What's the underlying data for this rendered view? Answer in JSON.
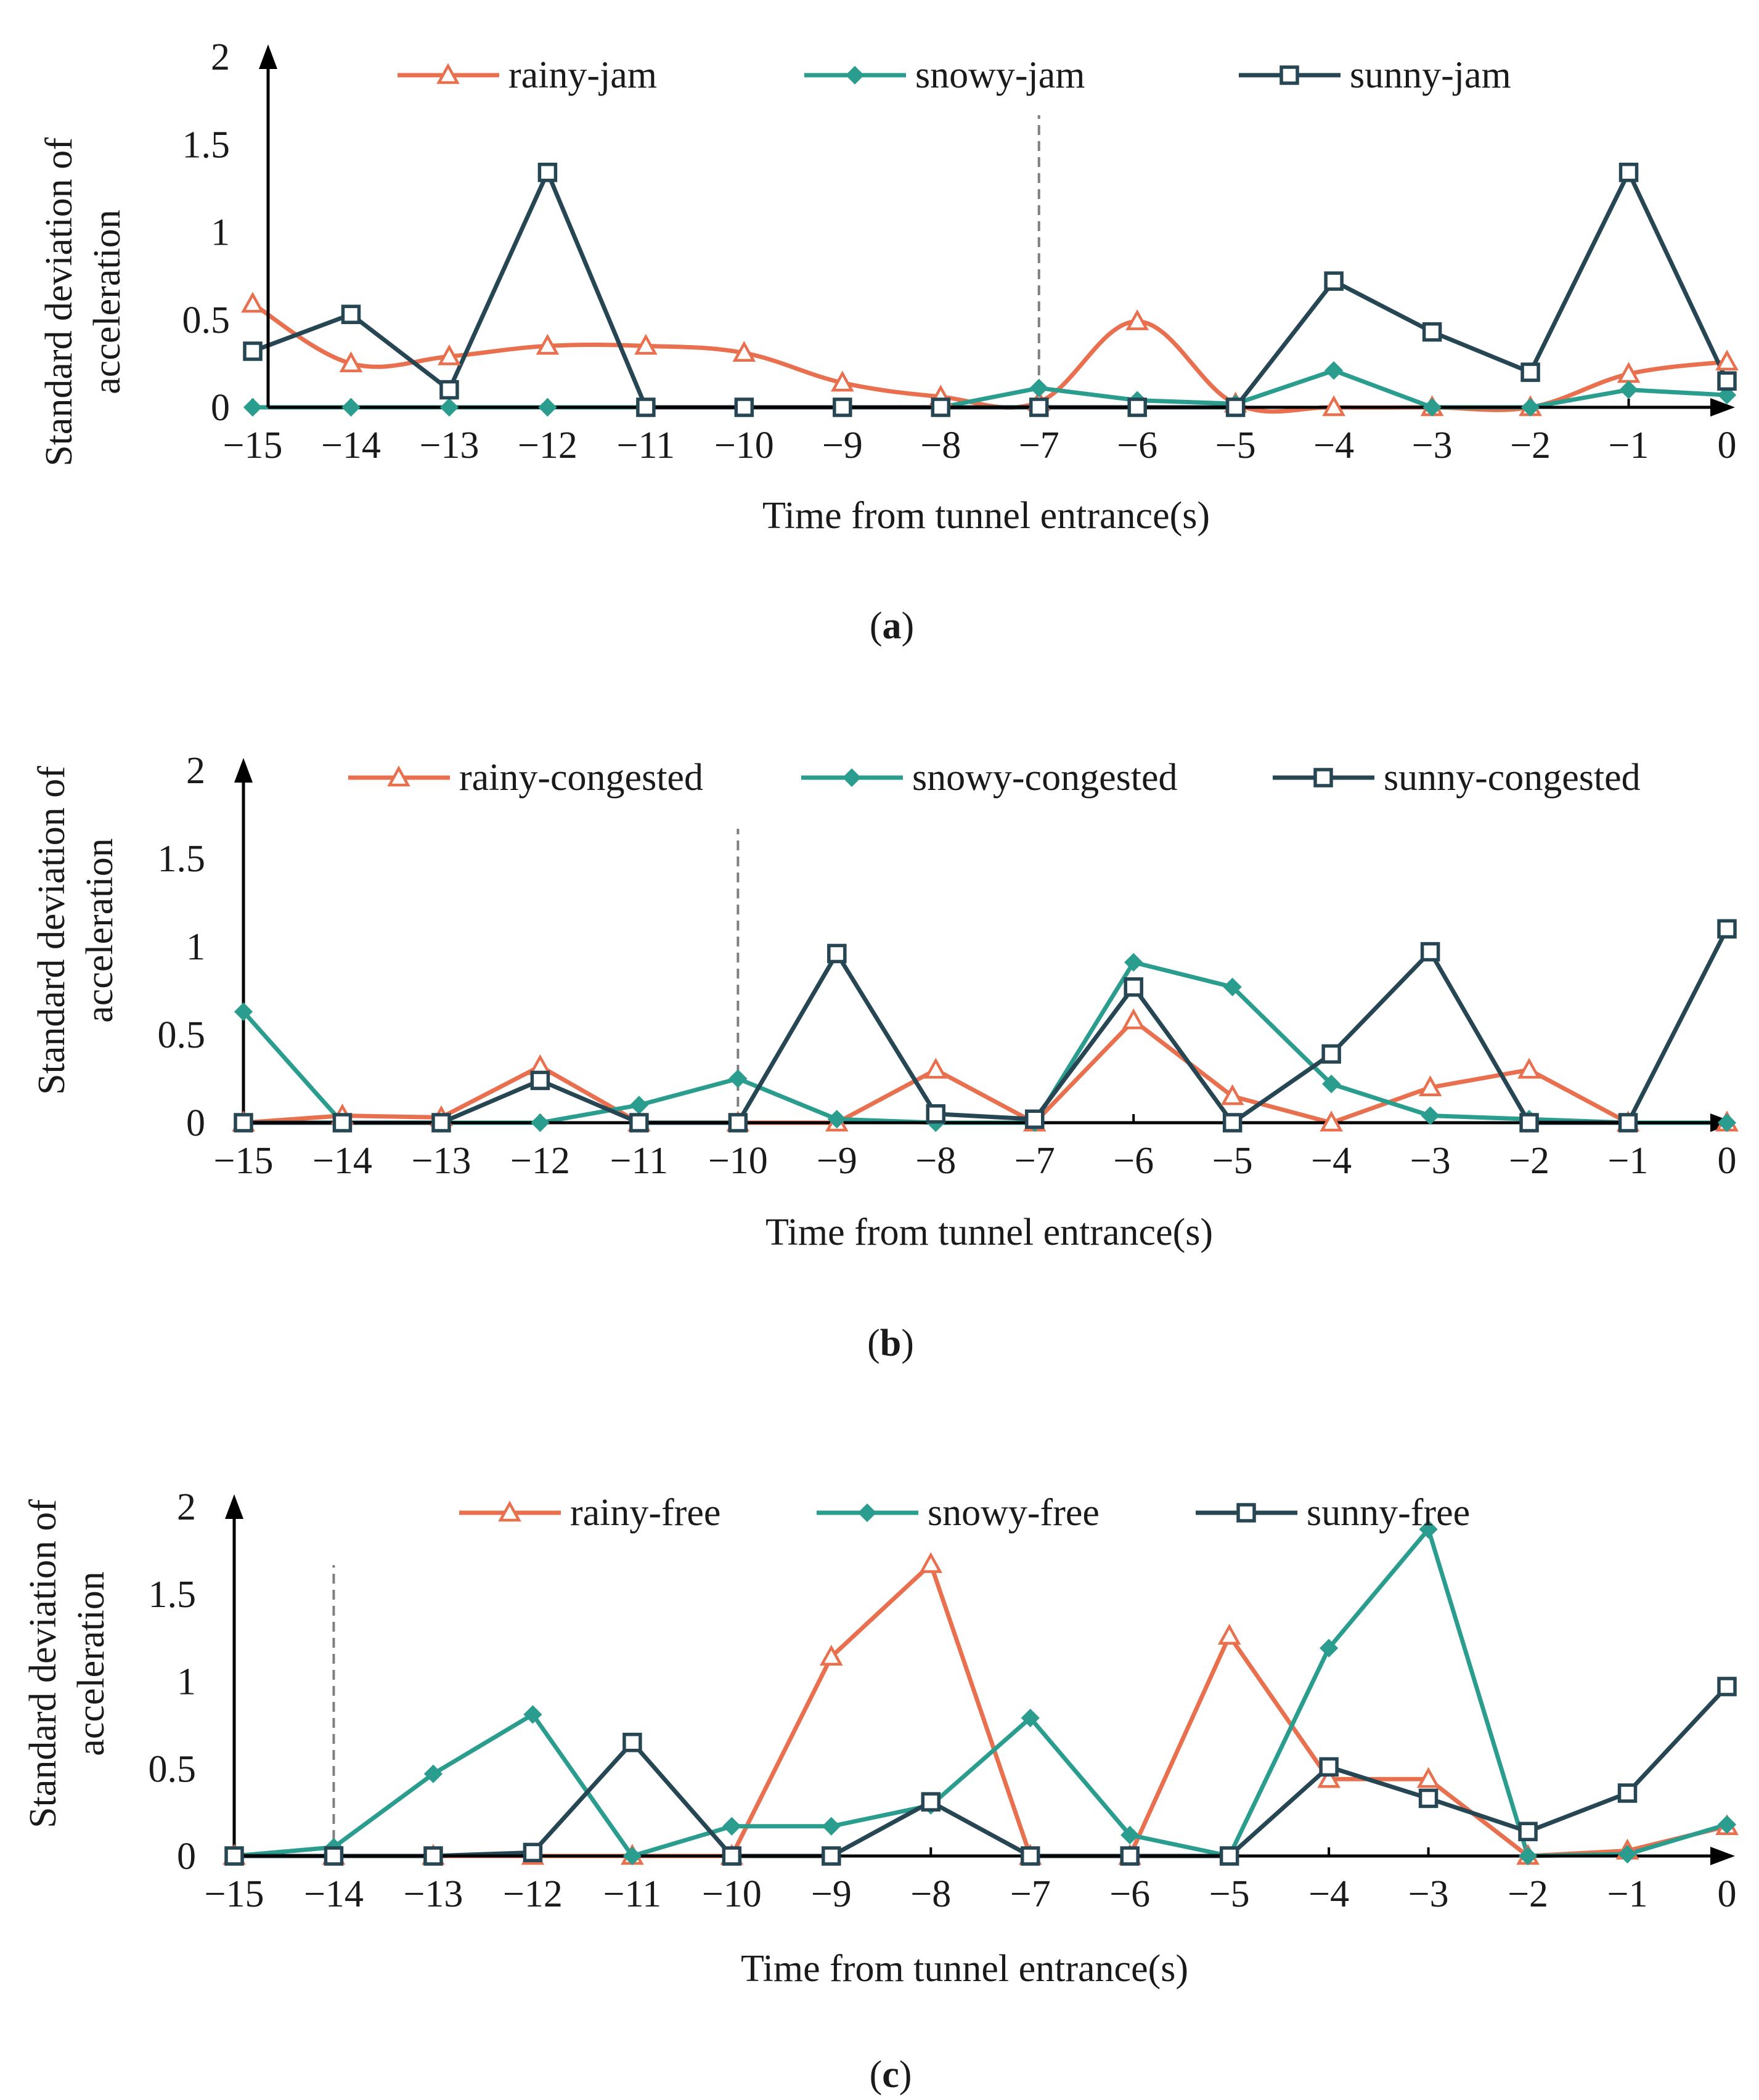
{
  "chart_data": [
    {
      "type": "line",
      "panel_label": "a",
      "xlabel": "Time from tunnel entrance(s)",
      "ylabel_lines": [
        "Standard deviation of",
        "acceleration"
      ],
      "x": [
        -15,
        -14,
        -13,
        -12,
        -11,
        -10,
        -9,
        -8,
        -7,
        -6,
        -5,
        -4,
        -3,
        -2,
        -1,
        0
      ],
      "x_tick_labels": [
        "−15",
        "−14",
        "−13",
        "−12",
        "−11",
        "−10",
        "−9",
        "−8",
        "−7",
        "−6",
        "−5",
        "−4",
        "−3",
        "−2",
        "−1",
        "0"
      ],
      "y_ticks": [
        0,
        0.5,
        1,
        1.5,
        2
      ],
      "y_tick_labels": [
        "0",
        "0.5",
        "1",
        "1.5",
        "2"
      ],
      "ylim": [
        0,
        2
      ],
      "xlim": [
        -15,
        0
      ],
      "dashed_vline_x": -7,
      "series": [
        {
          "name": "rainy-jam",
          "color": "#e8704f",
          "marker": "triangle",
          "smooth": true,
          "values": [
            0.59,
            0.25,
            0.29,
            0.35,
            0.35,
            0.31,
            0.14,
            0.06,
            0.03,
            0.49,
            0.02,
            0.0,
            0.0,
            0.0,
            0.19,
            0.26
          ]
        },
        {
          "name": "snowy-jam",
          "color": "#2a9d8f",
          "marker": "diamond",
          "smooth": false,
          "values": [
            0.0,
            0.0,
            0.0,
            0.0,
            0.0,
            0.0,
            0.0,
            0.0,
            0.11,
            0.04,
            0.02,
            0.21,
            0.0,
            0.0,
            0.1,
            0.07
          ]
        },
        {
          "name": "sunny-jam",
          "color": "#264653",
          "marker": "square",
          "smooth": false,
          "values": [
            0.32,
            0.53,
            0.1,
            1.34,
            0.0,
            0.0,
            0.0,
            0.0,
            0.0,
            0.0,
            0.0,
            0.72,
            0.43,
            0.2,
            1.34,
            0.15
          ]
        }
      ]
    },
    {
      "type": "line",
      "panel_label": "b",
      "xlabel": "Time from tunnel entrance(s)",
      "ylabel_lines": [
        "Standard deviation of",
        "acceleration"
      ],
      "x": [
        -15,
        -14,
        -13,
        -12,
        -11,
        -10,
        -9,
        -8,
        -7,
        -6,
        -5,
        -4,
        -3,
        -2,
        -1,
        0
      ],
      "x_tick_labels": [
        "−15",
        "−14",
        "−13",
        "−12",
        "−11",
        "−10",
        "−9",
        "−8",
        "−7",
        "−6",
        "−5",
        "−4",
        "−3",
        "−2",
        "−1",
        "0"
      ],
      "y_ticks": [
        0,
        0.5,
        1,
        1.5,
        2
      ],
      "y_tick_labels": [
        "0",
        "0.5",
        "1",
        "1.5",
        "2"
      ],
      "ylim": [
        0,
        2
      ],
      "xlim": [
        -15,
        0
      ],
      "dashed_vline_x": -10,
      "series": [
        {
          "name": "rainy-congested",
          "color": "#e8704f",
          "marker": "triangle",
          "smooth": false,
          "values": [
            0.0,
            0.04,
            0.03,
            0.32,
            0.0,
            0.0,
            0.0,
            0.3,
            0.0,
            0.58,
            0.15,
            0.0,
            0.2,
            0.3,
            0.0,
            0.0
          ]
        },
        {
          "name": "snowy-congested",
          "color": "#2a9d8f",
          "marker": "diamond",
          "smooth": false,
          "values": [
            0.63,
            0.0,
            0.0,
            0.0,
            0.1,
            0.25,
            0.02,
            0.0,
            0.0,
            0.91,
            0.77,
            0.22,
            0.04,
            0.02,
            0.0,
            0.0
          ]
        },
        {
          "name": "sunny-congested",
          "color": "#264653",
          "marker": "square",
          "smooth": false,
          "values": [
            0.0,
            0.0,
            0.0,
            0.24,
            0.0,
            0.0,
            0.96,
            0.05,
            0.02,
            0.77,
            0.0,
            0.39,
            0.97,
            0.0,
            0.0,
            1.1
          ]
        }
      ]
    },
    {
      "type": "line",
      "panel_label": "c",
      "xlabel": "Time from tunnel entrance(s)",
      "ylabel_lines": [
        "Standard deviation of",
        "acceleration"
      ],
      "x": [
        -15,
        -14,
        -13,
        -12,
        -11,
        -10,
        -9,
        -8,
        -7,
        -6,
        -5,
        -4,
        -3,
        -2,
        -1,
        0
      ],
      "x_tick_labels": [
        "−15",
        "−14",
        "−13",
        "−12",
        "−11",
        "−10",
        "−9",
        "−8",
        "−7",
        "−6",
        "−5",
        "−4",
        "−3",
        "−2",
        "−1",
        "0"
      ],
      "y_ticks": [
        0,
        0.5,
        1,
        1.5,
        2
      ],
      "y_tick_labels": [
        "0",
        "0.5",
        "1",
        "1.5",
        "2"
      ],
      "ylim": [
        0,
        2
      ],
      "xlim": [
        -15,
        0
      ],
      "dashed_vline_x": -14,
      "series": [
        {
          "name": "rainy-free",
          "color": "#e8704f",
          "marker": "triangle",
          "smooth": false,
          "values": [
            0.0,
            0.0,
            0.0,
            0.0,
            0.0,
            0.0,
            1.14,
            1.67,
            0.0,
            0.0,
            1.26,
            0.44,
            0.44,
            0.0,
            0.03,
            0.17
          ]
        },
        {
          "name": "snowy-free",
          "color": "#2a9d8f",
          "marker": "diamond",
          "smooth": false,
          "values": [
            0.0,
            0.05,
            0.47,
            0.81,
            0.0,
            0.17,
            0.17,
            0.29,
            0.79,
            0.12,
            0.0,
            1.19,
            1.87,
            0.0,
            0.01,
            0.18
          ]
        },
        {
          "name": "sunny-free",
          "color": "#264653",
          "marker": "square",
          "smooth": false,
          "values": [
            0.0,
            0.0,
            0.0,
            0.02,
            0.65,
            0.0,
            0.0,
            0.31,
            0.0,
            0.0,
            0.0,
            0.51,
            0.33,
            0.14,
            0.36,
            0.97
          ]
        }
      ]
    }
  ]
}
